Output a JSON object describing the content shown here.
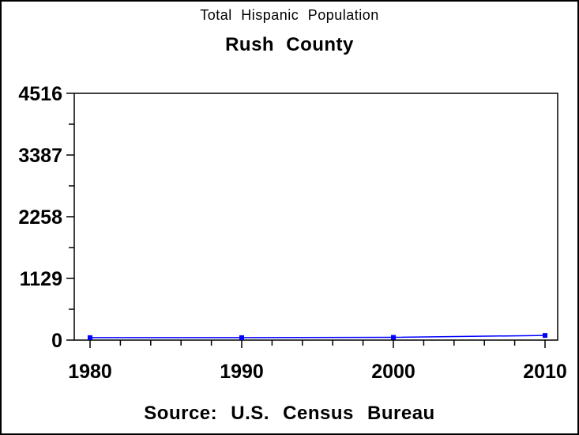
{
  "header": {
    "title": "Total Hispanic Population",
    "subtitle": "Rush County"
  },
  "footer": {
    "source": "Source: U.S. Census Bureau"
  },
  "colors": {
    "line": "#0000ff",
    "marker": "#0000ff",
    "axis": "#000000",
    "text": "#000000",
    "background": "#ffffff"
  },
  "chart_data": {
    "type": "line",
    "title": "Total Hispanic Population",
    "subtitle": "Rush County",
    "annotation": "Source: U.S. Census Bureau",
    "x": [
      1980,
      1990,
      2000,
      2010
    ],
    "series": [
      {
        "name": "Total Hispanic Population",
        "values": [
          45,
          45,
          50,
          85
        ],
        "color": "#0000ff",
        "marker": "square"
      }
    ],
    "xticks": [
      1980,
      1990,
      2000,
      2010
    ],
    "yticks": [
      0,
      1129,
      2258,
      3387,
      4516
    ],
    "x_minor_step_years": 2,
    "y_minor_divisions": 2,
    "xlim": [
      1979,
      2010.8
    ],
    "ylim": [
      0,
      4516
    ],
    "xlabel": "",
    "ylabel": "",
    "grid": false,
    "legend": false,
    "frame": true
  }
}
